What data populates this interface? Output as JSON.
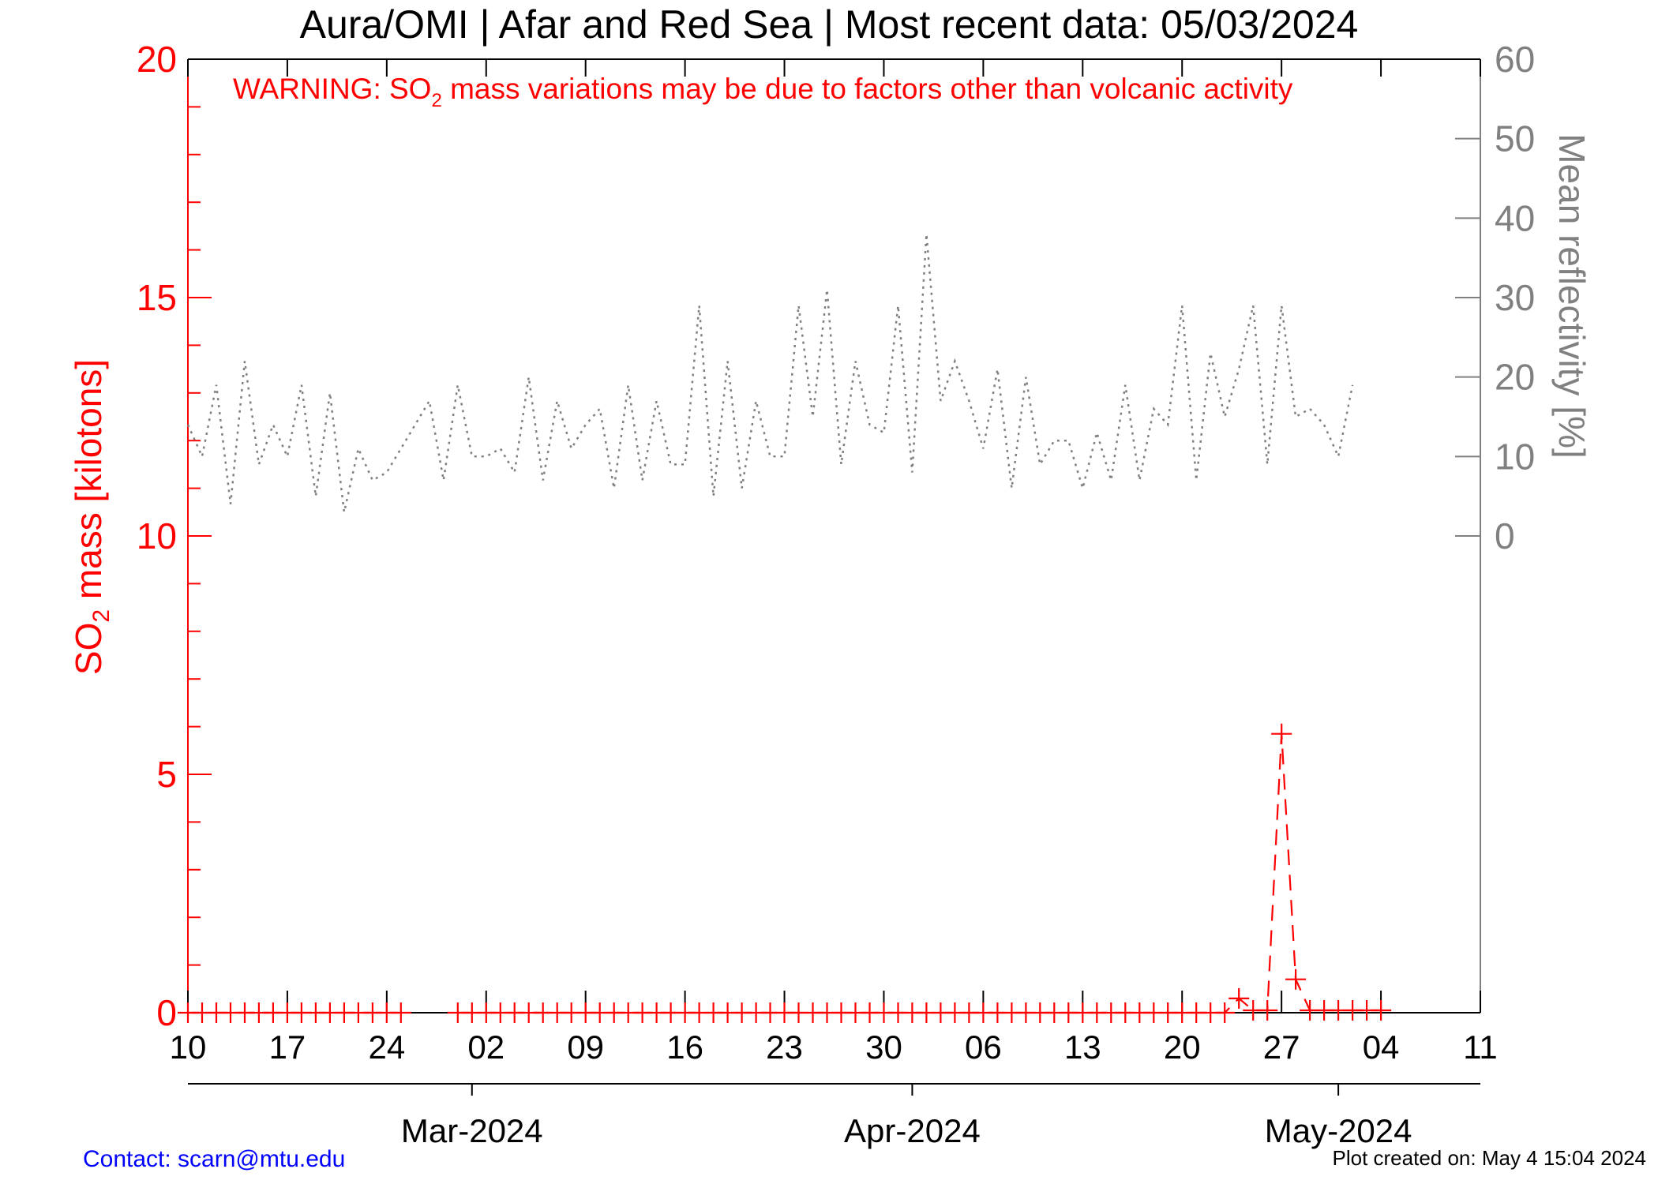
{
  "chart_data": {
    "type": "line",
    "title": "Aura/OMI | Afar and Red Sea | Most recent data: 05/03/2024",
    "warning": {
      "prefix": "WARNING: SO",
      "subscript": "2",
      "suffix": " mass variations may be due to factors other than volcanic activity"
    },
    "ylabel_left": {
      "prefix": "SO",
      "subscript": "2",
      "suffix": " mass [kilotons]"
    },
    "ylabel_right": "Mean reflectivity [%]",
    "ylim_left": [
      0,
      20
    ],
    "ylim_right": [
      0,
      60
    ],
    "yticks_left": [
      "0",
      "5",
      "10",
      "15",
      "20"
    ],
    "yticks_right": [
      "0",
      "10",
      "20",
      "30",
      "40",
      "50",
      "60"
    ],
    "xlim": [
      "2024-02-10",
      "2024-05-11"
    ],
    "xticks": [
      {
        "date": "2024-02-10",
        "label": "10"
      },
      {
        "date": "2024-02-17",
        "label": "17"
      },
      {
        "date": "2024-02-24",
        "label": "24"
      },
      {
        "date": "2024-03-02",
        "label": "02"
      },
      {
        "date": "2024-03-09",
        "label": "09"
      },
      {
        "date": "2024-03-16",
        "label": "16"
      },
      {
        "date": "2024-03-23",
        "label": "23"
      },
      {
        "date": "2024-03-30",
        "label": "30"
      },
      {
        "date": "2024-04-06",
        "label": "06"
      },
      {
        "date": "2024-04-13",
        "label": "13"
      },
      {
        "date": "2024-04-20",
        "label": "20"
      },
      {
        "date": "2024-04-27",
        "label": "27"
      },
      {
        "date": "2024-05-04",
        "label": "04"
      },
      {
        "date": "2024-05-11",
        "label": "11"
      }
    ],
    "months": [
      {
        "date": "2024-03-01",
        "label": "Mar-2024"
      },
      {
        "date": "2024-04-01",
        "label": "Apr-2024"
      },
      {
        "date": "2024-05-01",
        "label": "May-2024"
      }
    ],
    "series": [
      {
        "axis": "left",
        "color": "#ff0000",
        "style": "dashed-with-plus-markers",
        "start": "2024-02-10",
        "values": [
          0,
          0,
          0,
          0,
          0,
          0,
          0,
          0,
          0,
          0,
          0,
          0,
          0,
          0,
          0,
          0,
          null,
          null,
          null,
          0,
          0,
          0,
          0,
          0,
          0,
          0,
          0,
          0,
          0,
          0,
          0,
          0,
          0,
          0,
          0,
          0,
          0,
          0,
          0,
          0,
          0,
          0,
          0,
          0,
          0,
          0,
          0,
          0,
          0,
          0,
          0,
          0,
          0,
          0,
          0,
          0,
          0,
          0,
          0,
          0,
          0,
          0,
          0,
          0,
          0,
          0,
          0,
          0,
          0,
          0,
          0,
          0,
          0,
          0,
          0.3,
          0.05,
          0.05,
          5.85,
          0.7,
          0.05,
          0.05,
          0.05,
          0.05,
          0.05,
          0.05
        ]
      },
      {
        "axis": "right",
        "color": "#808080",
        "style": "dotted",
        "start": "2024-02-10",
        "values": [
          14,
          10,
          19,
          4,
          22,
          9,
          14,
          10,
          19,
          5,
          18,
          3,
          11,
          7,
          8,
          11,
          14,
          17,
          7,
          19,
          10,
          10,
          11,
          8,
          20,
          7,
          17,
          11,
          14,
          16,
          6,
          19,
          7,
          17,
          9,
          9,
          29,
          5,
          22,
          6,
          17,
          10,
          10,
          29,
          15,
          31,
          9,
          22,
          14,
          13,
          29,
          8,
          38,
          17,
          22,
          17,
          11,
          21,
          6,
          20,
          9,
          12,
          12,
          6,
          13,
          7,
          19,
          7,
          16,
          14,
          29,
          7,
          23,
          15,
          21,
          29,
          9,
          29,
          15,
          16,
          14,
          10,
          19
        ]
      }
    ],
    "contact": "Contact: scarn@mtu.edu",
    "created": "Plot created on: May  4 15:04 2024"
  }
}
